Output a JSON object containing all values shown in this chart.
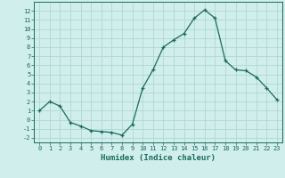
{
  "x": [
    0,
    1,
    2,
    3,
    4,
    5,
    6,
    7,
    8,
    9,
    10,
    11,
    12,
    13,
    14,
    15,
    16,
    17,
    18,
    19,
    20,
    21,
    22,
    23
  ],
  "y": [
    1.0,
    2.0,
    1.5,
    -0.3,
    -0.7,
    -1.2,
    -1.3,
    -1.4,
    -1.7,
    -0.5,
    3.5,
    5.5,
    8.0,
    8.8,
    9.5,
    11.2,
    12.1,
    11.2,
    6.5,
    5.5,
    5.4,
    4.7,
    3.5,
    2.2
  ],
  "line_color": "#1a6b5e",
  "marker": "+",
  "bg_color": "#d0eeeb",
  "grid_color": "#b0d8d2",
  "axis_color": "#1a6b5e",
  "xlabel": "Humidex (Indice chaleur)",
  "ylim": [
    -2.5,
    13.0
  ],
  "xlim": [
    -0.5,
    23.5
  ],
  "yticks": [
    -2,
    -1,
    0,
    1,
    2,
    3,
    4,
    5,
    6,
    7,
    8,
    9,
    10,
    11,
    12
  ],
  "xticks": [
    0,
    1,
    2,
    3,
    4,
    5,
    6,
    7,
    8,
    9,
    10,
    11,
    12,
    13,
    14,
    15,
    16,
    17,
    18,
    19,
    20,
    21,
    22,
    23
  ],
  "tick_fontsize": 5.0,
  "xlabel_fontsize": 6.5
}
